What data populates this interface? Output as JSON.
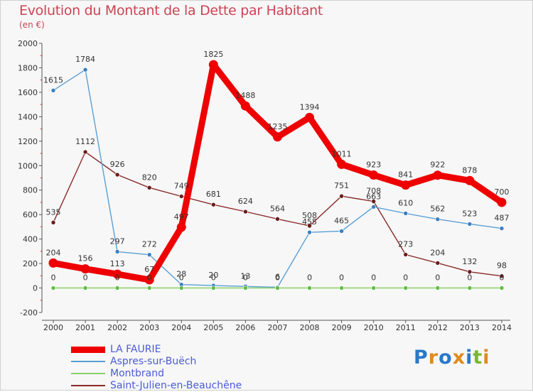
{
  "title": "Evolution du Montant de la Dette par Habitant",
  "subtitle": "(en €)",
  "logo": {
    "text": "Proxiti",
    "colors": [
      "#2a78c8",
      "#e08a1e",
      "#2a78c8",
      "#e08a1e",
      "#2a78c8",
      "#7bb82e",
      "#e08a1e"
    ]
  },
  "chart_data": {
    "type": "line",
    "x": [
      2000,
      2001,
      2002,
      2003,
      2004,
      2005,
      2006,
      2007,
      2008,
      2009,
      2010,
      2011,
      2012,
      2013,
      2014
    ],
    "ylim": [
      -200,
      2000
    ],
    "yticks": [
      -200,
      0,
      200,
      400,
      600,
      800,
      1000,
      1200,
      1400,
      1600,
      1800,
      2000
    ],
    "grid": false,
    "legend_position": "bottom-left",
    "series": [
      {
        "name": "Saint-Julien-en-Beauchêne",
        "color": "#8b2a2a",
        "marker": "#6b1a1a",
        "values": [
          535,
          1112,
          926,
          820,
          749,
          681,
          624,
          564,
          508,
          751,
          708,
          273,
          204,
          132,
          98
        ]
      },
      {
        "name": "Aspres-sur-Buëch",
        "color": "#5a9fd4",
        "marker": "#3a7fc4",
        "values": [
          1615,
          1784,
          297,
          272,
          28,
          20,
          13,
          6,
          455,
          465,
          663,
          610,
          562,
          523,
          487
        ]
      },
      {
        "name": "Montbrand",
        "color": "#88d068",
        "marker": "#66bb44",
        "values": [
          0,
          0,
          0,
          0,
          0,
          0,
          0,
          0,
          0,
          0,
          0,
          0,
          0,
          0,
          0
        ]
      },
      {
        "name": "LA FAURIE",
        "color": "#ee0000",
        "marker": "#ee0000",
        "values": [
          204,
          156,
          113,
          67,
          497,
          1825,
          1488,
          1235,
          1394,
          1011,
          923,
          841,
          922,
          878,
          700
        ]
      }
    ],
    "legend_order": [
      "LA FAURIE",
      "Aspres-sur-Buëch",
      "Montbrand",
      "Saint-Julien-en-Beauchêne"
    ]
  }
}
